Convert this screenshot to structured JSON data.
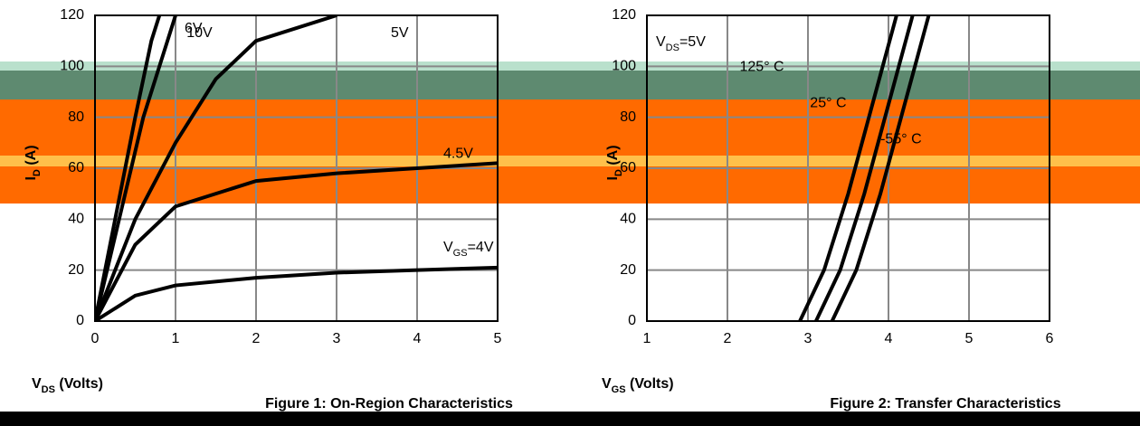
{
  "chart_data": [
    {
      "type": "line",
      "caption": "Figure 1: On-Region Characteristics",
      "x_label": {
        "main": "V",
        "sub": "DS",
        "rest": " (Volts)"
      },
      "y_label": {
        "main": "I",
        "sub": "D",
        "rest": " (A)"
      },
      "xlim": [
        0,
        5
      ],
      "xticks": [
        0,
        1,
        2,
        3,
        4,
        5
      ],
      "ylim": [
        0,
        120
      ],
      "yticks": [
        0,
        20,
        40,
        60,
        80,
        100,
        120
      ],
      "grid": true,
      "series": [
        {
          "name": "10V",
          "color": "#000000",
          "x": [
            0,
            0.25,
            0.5,
            0.7,
            0.8
          ],
          "values": [
            0,
            40,
            80,
            110,
            120
          ]
        },
        {
          "name": "6V",
          "color": "#000000",
          "x": [
            0,
            0.3,
            0.6,
            0.9,
            1.0
          ],
          "values": [
            0,
            40,
            80,
            110,
            120
          ]
        },
        {
          "name": "5V",
          "color": "#000000",
          "x": [
            0,
            0.5,
            1,
            1.5,
            2,
            3
          ],
          "values": [
            0,
            40,
            70,
            95,
            110,
            120
          ]
        },
        {
          "name": "4.5V",
          "color": "#000000",
          "x": [
            0,
            0.5,
            1,
            2,
            3,
            4,
            5
          ],
          "values": [
            0,
            30,
            45,
            55,
            58,
            60,
            62
          ]
        },
        {
          "name": {
            "main": "V",
            "sub": "GS",
            "rest": "=4V"
          },
          "color": "#000000",
          "x": [
            0,
            0.5,
            1,
            2,
            3,
            4,
            5
          ],
          "values": [
            0,
            10,
            14,
            17,
            19,
            20,
            21
          ]
        }
      ]
    },
    {
      "type": "line",
      "caption": "Figure 2: Transfer Characteristics",
      "x_label": {
        "main": "V",
        "sub": "GS",
        "rest": " (Volts)"
      },
      "y_label": {
        "main": "I",
        "sub": "D",
        "rest": " (A)"
      },
      "annotation": {
        "main": "V",
        "sub": "DS",
        "rest": "=5V"
      },
      "xlim": [
        1,
        6
      ],
      "xticks": [
        1,
        2,
        3,
        4,
        5,
        6
      ],
      "ylim": [
        0,
        120
      ],
      "yticks": [
        0,
        20,
        40,
        60,
        80,
        100,
        120
      ],
      "grid": true,
      "series": [
        {
          "name": "125° C",
          "color": "#000000",
          "x": [
            2.9,
            3.2,
            3.5,
            3.8,
            4.1
          ],
          "values": [
            0,
            20,
            50,
            85,
            120
          ]
        },
        {
          "name": "25° C",
          "color": "#000000",
          "x": [
            3.1,
            3.4,
            3.7,
            4.0,
            4.3
          ],
          "values": [
            0,
            20,
            50,
            85,
            120
          ]
        },
        {
          "name": "-55° C",
          "color": "#000000",
          "x": [
            3.3,
            3.6,
            3.9,
            4.2,
            4.5
          ],
          "values": [
            0,
            20,
            50,
            85,
            120
          ]
        }
      ]
    }
  ]
}
